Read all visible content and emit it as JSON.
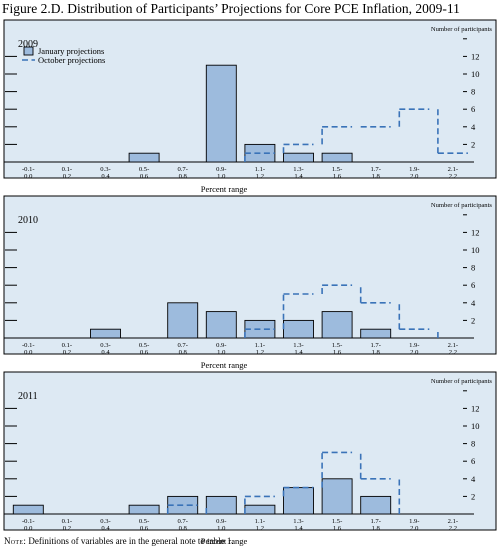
{
  "figure": {
    "title": "Figure 2.D. Distribution of Participants’ Projections for Core PCE Inflation, 2009-11",
    "note_label": "Note:",
    "note_text": " Definitions of variables are in the general note to table 1."
  },
  "legend": {
    "january": "January projections",
    "october": "October projections"
  },
  "chart_data": [
    {
      "type": "bar",
      "title": "2009",
      "xlabel": "Percent range",
      "ylabel": "Number of participants",
      "ylim": [
        0,
        12
      ],
      "y_ticks": [
        2,
        4,
        6,
        8,
        10,
        12
      ],
      "grid": false,
      "legend": "top-left",
      "categories": [
        [
          "-0.1-",
          "0.0"
        ],
        [
          "0.1-",
          "0.2"
        ],
        [
          "0.3-",
          "0.4"
        ],
        [
          "0.5-",
          "0.6"
        ],
        [
          "0.7-",
          "0.8"
        ],
        [
          "0.9-",
          "1.0"
        ],
        [
          "1.1-",
          "1.2"
        ],
        [
          "1.3-",
          "1.4"
        ],
        [
          "1.5-",
          "1.6"
        ],
        [
          "1.7-",
          "1.8"
        ],
        [
          "1.9-",
          "2.0"
        ],
        [
          "2.1-",
          "2.2"
        ]
      ],
      "series": [
        {
          "name": "January projections",
          "style": "bar",
          "color": "#9dbbdd",
          "values": [
            0,
            0,
            0,
            1,
            0,
            11,
            2,
            1,
            1,
            0,
            0,
            0
          ]
        },
        {
          "name": "October projections",
          "style": "dashed-step",
          "color": "#3a73b8",
          "values": [
            0,
            0,
            0,
            0,
            0,
            0,
            1,
            2,
            4,
            4,
            6,
            1
          ]
        }
      ]
    },
    {
      "type": "bar",
      "title": "2010",
      "xlabel": "Percent range",
      "ylabel": "Number of participants",
      "ylim": [
        0,
        12
      ],
      "y_ticks": [
        2,
        4,
        6,
        8,
        10,
        12
      ],
      "grid": false,
      "categories": [
        [
          "-0.1-",
          "0.0"
        ],
        [
          "0.1-",
          "0.2"
        ],
        [
          "0.3-",
          "0.4"
        ],
        [
          "0.5-",
          "0.6"
        ],
        [
          "0.7-",
          "0.8"
        ],
        [
          "0.9-",
          "1.0"
        ],
        [
          "1.1-",
          "1.2"
        ],
        [
          "1.3-",
          "1.4"
        ],
        [
          "1.5-",
          "1.6"
        ],
        [
          "1.7-",
          "1.8"
        ],
        [
          "1.9-",
          "2.0"
        ],
        [
          "2.1-",
          "2.2"
        ]
      ],
      "series": [
        {
          "name": "January projections",
          "style": "bar",
          "color": "#9dbbdd",
          "values": [
            0,
            0,
            1,
            0,
            4,
            3,
            2,
            2,
            3,
            1,
            0,
            0
          ]
        },
        {
          "name": "October projections",
          "style": "dashed-step",
          "color": "#3a73b8",
          "values": [
            0,
            0,
            0,
            0,
            0,
            0,
            1,
            5,
            6,
            4,
            1,
            0
          ]
        }
      ]
    },
    {
      "type": "bar",
      "title": "2011",
      "xlabel": "Percent range",
      "ylabel": "Number of participants",
      "ylim": [
        0,
        12
      ],
      "y_ticks": [
        2,
        4,
        6,
        8,
        10,
        12
      ],
      "grid": false,
      "categories": [
        [
          "-0.1-",
          "0.0"
        ],
        [
          "0.1-",
          "0.2"
        ],
        [
          "0.3-",
          "0.4"
        ],
        [
          "0.5-",
          "0.6"
        ],
        [
          "0.7-",
          "0.8"
        ],
        [
          "0.9-",
          "1.0"
        ],
        [
          "1.1-",
          "1.2"
        ],
        [
          "1.3-",
          "1.4"
        ],
        [
          "1.5-",
          "1.6"
        ],
        [
          "1.7-",
          "1.8"
        ],
        [
          "1.9-",
          "2.0"
        ],
        [
          "2.1-",
          "2.2"
        ]
      ],
      "series": [
        {
          "name": "January projections",
          "style": "bar",
          "color": "#9dbbdd",
          "values": [
            1,
            0,
            0,
            1,
            2,
            2,
            1,
            3,
            4,
            2,
            0,
            0
          ]
        },
        {
          "name": "October projections",
          "style": "dashed-step",
          "color": "#3a73b8",
          "values": [
            0,
            0,
            0,
            0,
            1,
            0,
            2,
            3,
            7,
            4,
            0,
            0
          ]
        }
      ]
    }
  ]
}
